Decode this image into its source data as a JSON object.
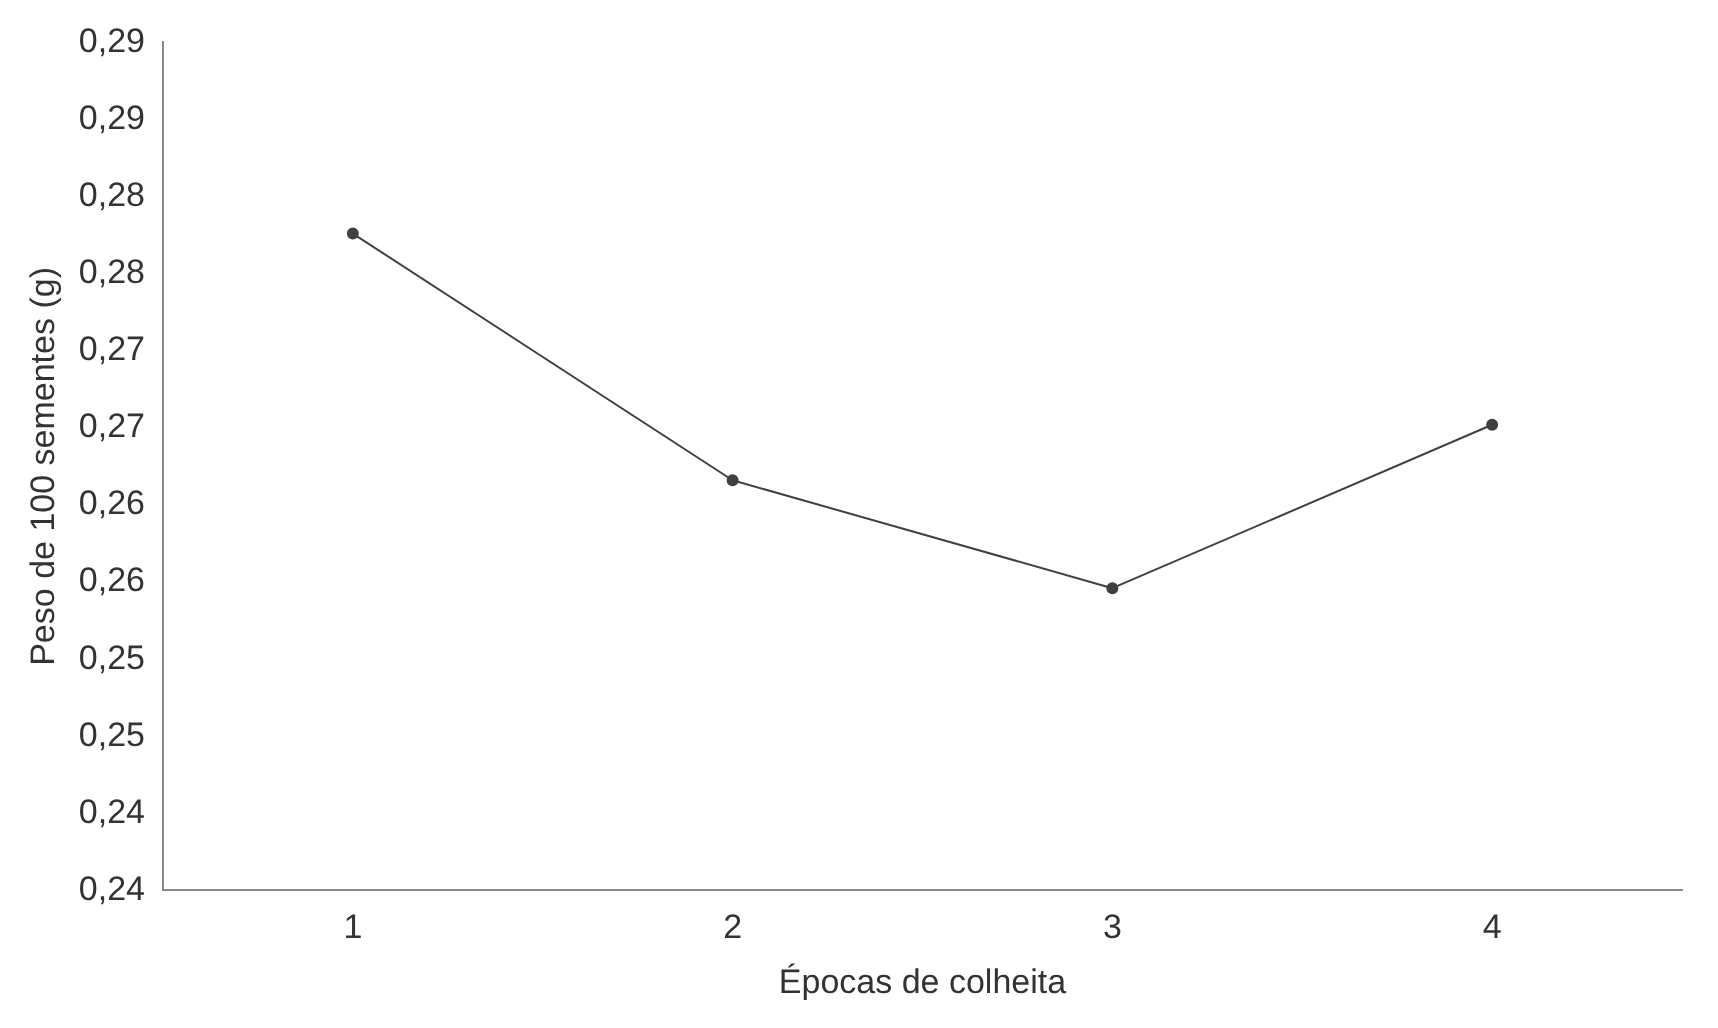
{
  "chart_data": {
    "type": "line",
    "xlabel": "Épocas de colheita",
    "ylabel": "Peso de 100 sementes (g)",
    "categories": [
      "1",
      "2",
      "3",
      "4"
    ],
    "series": [
      {
        "color": "#404040",
        "values": [
          0.2826,
          0.2666,
          0.2596,
          0.2702
        ]
      }
    ],
    "ylim": [
      0.24,
      0.295
    ],
    "yticks": [
      {
        "value": 0.24,
        "label": "0,24"
      },
      {
        "value": 0.245,
        "label": "0,24"
      },
      {
        "value": 0.25,
        "label": "0,25"
      },
      {
        "value": 0.255,
        "label": "0,25"
      },
      {
        "value": 0.26,
        "label": "0,26"
      },
      {
        "value": 0.265,
        "label": "0,26"
      },
      {
        "value": 0.27,
        "label": "0,27"
      },
      {
        "value": 0.275,
        "label": "0,27"
      },
      {
        "value": 0.28,
        "label": "0,28"
      },
      {
        "value": 0.285,
        "label": "0,28"
      },
      {
        "value": 0.29,
        "label": "0,29"
      },
      {
        "value": 0.295,
        "label": "0,29"
      }
    ],
    "grid": false,
    "legend": false,
    "marker": "circle",
    "line_style": "solid"
  }
}
